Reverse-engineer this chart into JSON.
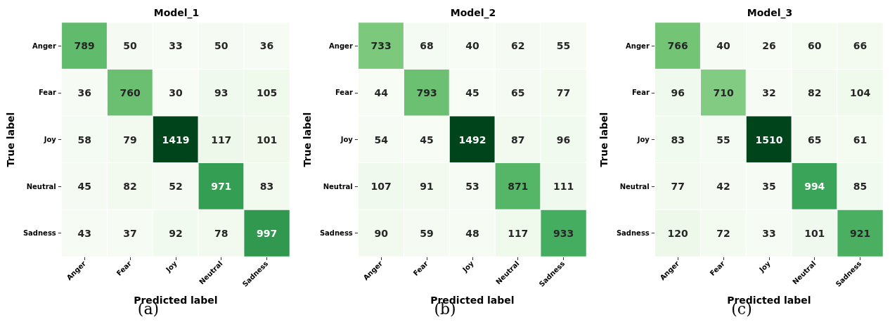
{
  "chart_data": [
    {
      "type": "heatmap",
      "title": "Model_1",
      "xlabel": "Predicted label",
      "ylabel": "True label",
      "annotations": [
        "(a)"
      ],
      "categories": [
        "Anger",
        "Fear",
        "Joy",
        "Neutral",
        "Sadness"
      ],
      "y_categories": [
        "Anger",
        "Fear",
        "Joy",
        "Neutral",
        "Sadness"
      ],
      "cells": [
        [
          789,
          50,
          33,
          50,
          36
        ],
        [
          36,
          760,
          30,
          93,
          105
        ],
        [
          58,
          79,
          1419,
          117,
          101
        ],
        [
          45,
          82,
          52,
          971,
          83
        ],
        [
          43,
          37,
          92,
          78,
          997
        ]
      ],
      "data_labels": true
    },
    {
      "type": "heatmap",
      "title": "Model_2",
      "xlabel": "Predicted label",
      "ylabel": "True label",
      "annotations": [
        "(b)"
      ],
      "categories": [
        "Anger",
        "Fear",
        "Joy",
        "Neutral",
        "Sadness"
      ],
      "y_categories": [
        "Anger",
        "Fear",
        "Joy",
        "Neutral",
        "Sadness"
      ],
      "cells": [
        [
          733,
          68,
          40,
          62,
          55
        ],
        [
          44,
          793,
          45,
          65,
          77
        ],
        [
          54,
          45,
          1492,
          87,
          96
        ],
        [
          107,
          91,
          53,
          871,
          111
        ],
        [
          90,
          59,
          48,
          117,
          933
        ]
      ],
      "data_labels": true
    },
    {
      "type": "heatmap",
      "title": "Model_3",
      "xlabel": "Predicted label",
      "ylabel": "True label",
      "annotations": [
        "(c)"
      ],
      "categories": [
        "Anger",
        "Fear",
        "Joy",
        "Neutral",
        "Sadness"
      ],
      "y_categories": [
        "Anger",
        "Fear",
        "Joy",
        "Neutral",
        "Sadness"
      ],
      "cells": [
        [
          766,
          40,
          26,
          60,
          66
        ],
        [
          96,
          710,
          32,
          82,
          104
        ],
        [
          83,
          55,
          1510,
          65,
          61
        ],
        [
          77,
          42,
          35,
          994,
          85
        ],
        [
          120,
          72,
          33,
          101,
          921
        ]
      ],
      "data_labels": true
    }
  ]
}
